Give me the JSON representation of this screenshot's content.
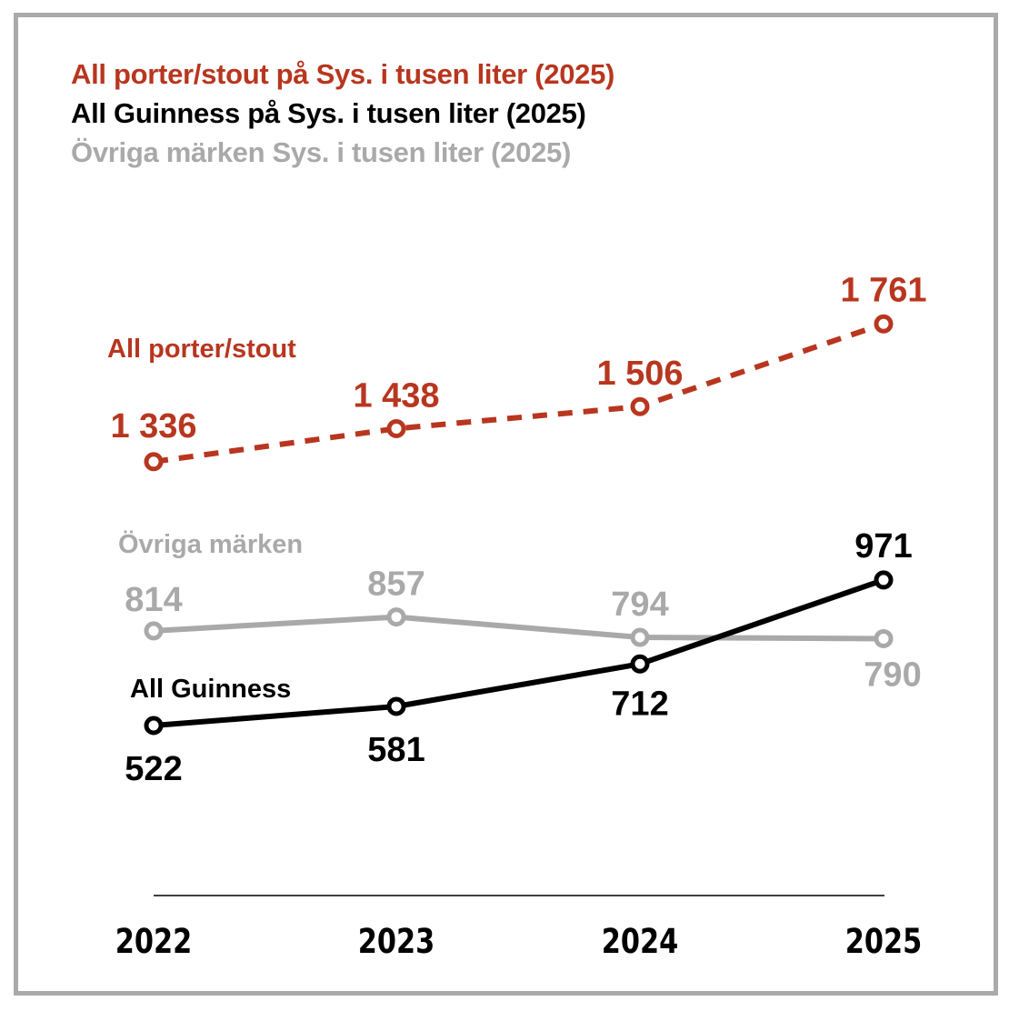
{
  "colors": {
    "porter": "#b8361f",
    "guinness": "#000000",
    "ovriga": "#a9a9a9",
    "frame": "#aaaaaa",
    "axis": "#000000"
  },
  "legend": [
    {
      "text": "All porter/stout på Sys. i tusen liter (2025)",
      "series": "porter"
    },
    {
      "text": "All Guinness på Sys. i tusen liter (2025)",
      "series": "guinness"
    },
    {
      "text": "Övriga märken Sys. i tusen liter (2025)",
      "series": "ovriga"
    }
  ],
  "chart_data": {
    "type": "line",
    "title": "",
    "xlabel": "",
    "ylabel": "tusen liter",
    "categories": [
      "2022",
      "2023",
      "2024",
      "2025"
    ],
    "grid": false,
    "legend_position": "top-left",
    "series": [
      {
        "key": "porter",
        "name": "All porter/stout",
        "values": [
          1336,
          1438,
          1506,
          1761
        ],
        "value_labels": [
          "1 336",
          "1 438",
          "1 506",
          "1 761"
        ],
        "style": "dashed",
        "color": "#b8361f"
      },
      {
        "key": "ovriga",
        "name": "Övriga märken",
        "values": [
          814,
          857,
          794,
          790
        ],
        "value_labels": [
          "814",
          "857",
          "794",
          "790"
        ],
        "style": "solid",
        "color": "#a9a9a9"
      },
      {
        "key": "guinness",
        "name": "All Guinness",
        "values": [
          522,
          581,
          712,
          971
        ],
        "value_labels": [
          "522",
          "581",
          "712",
          "971"
        ],
        "style": "solid",
        "color": "#000000"
      }
    ],
    "ylim": [
      200,
      1900
    ]
  }
}
